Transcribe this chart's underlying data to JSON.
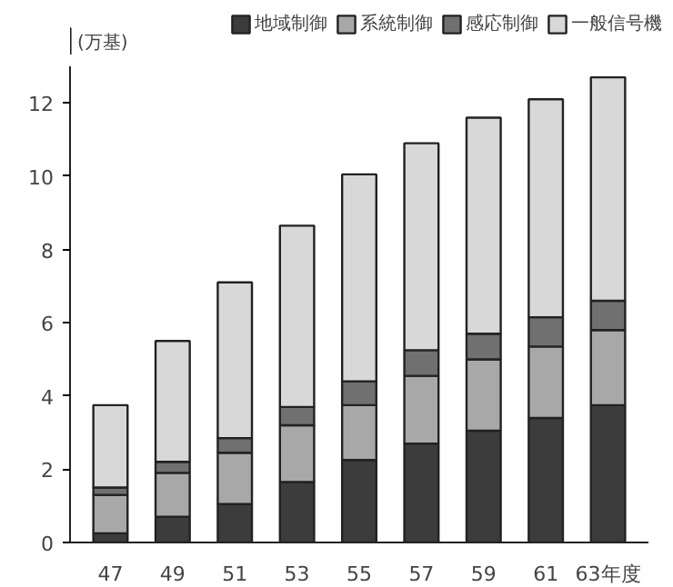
{
  "chart_data": {
    "type": "bar",
    "stacked": true,
    "ylabel": "(万基)",
    "categories": [
      "47",
      "49",
      "51",
      "53",
      "55",
      "57",
      "59",
      "61",
      "63年度"
    ],
    "series": [
      {
        "name": "地域制御",
        "color": "#3c3c3c",
        "values": [
          0.25,
          0.7,
          1.05,
          1.65,
          2.25,
          2.7,
          3.05,
          3.4,
          3.75
        ]
      },
      {
        "name": "系統制御",
        "color": "#a8a8a8",
        "values": [
          1.05,
          1.2,
          1.4,
          1.55,
          1.5,
          1.85,
          1.95,
          1.95,
          2.05
        ]
      },
      {
        "name": "感応制御",
        "color": "#707070",
        "values": [
          0.2,
          0.3,
          0.4,
          0.5,
          0.65,
          0.7,
          0.7,
          0.8,
          0.8
        ]
      },
      {
        "name": "一般信号機",
        "color": "#d8d8d8",
        "values": [
          2.25,
          3.3,
          4.25,
          4.95,
          5.65,
          5.65,
          5.9,
          5.95,
          6.1
        ]
      }
    ],
    "ylim": [
      0,
      13
    ],
    "yticks": [
      0,
      2,
      4,
      6,
      8,
      10,
      12
    ],
    "grid": false,
    "legend": "top"
  }
}
